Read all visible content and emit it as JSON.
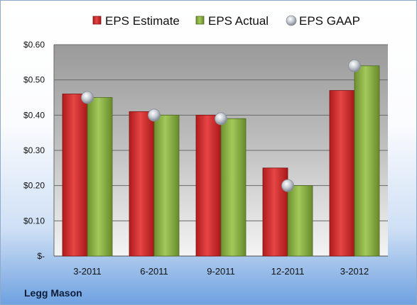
{
  "company": "Legg Mason",
  "colors": {
    "estimate": "#d42e2e",
    "actual": "#8ab33f",
    "gaap": "#b9bec6"
  },
  "chart_data": {
    "type": "bar",
    "categories": [
      "3-2011",
      "6-2011",
      "9-2011",
      "12-2011",
      "3-2012"
    ],
    "series": [
      {
        "name": "EPS Estimate",
        "type": "bar",
        "values": [
          0.46,
          0.41,
          0.4,
          0.25,
          0.47
        ]
      },
      {
        "name": "EPS Actual",
        "type": "bar",
        "values": [
          0.45,
          0.4,
          0.39,
          0.2,
          0.54
        ]
      },
      {
        "name": "EPS GAAP",
        "type": "scatter",
        "values": [
          0.45,
          0.4,
          0.39,
          0.2,
          0.54
        ]
      }
    ],
    "ylim": [
      0,
      0.6
    ],
    "yticks": [
      0,
      0.1,
      0.2,
      0.3,
      0.4,
      0.5,
      0.6
    ],
    "ytick_labels": [
      "$-",
      "$0.10",
      "$0.20",
      "$0.30",
      "$0.40",
      "$0.50",
      "$0.60"
    ],
    "grid": true,
    "legend": "top"
  }
}
